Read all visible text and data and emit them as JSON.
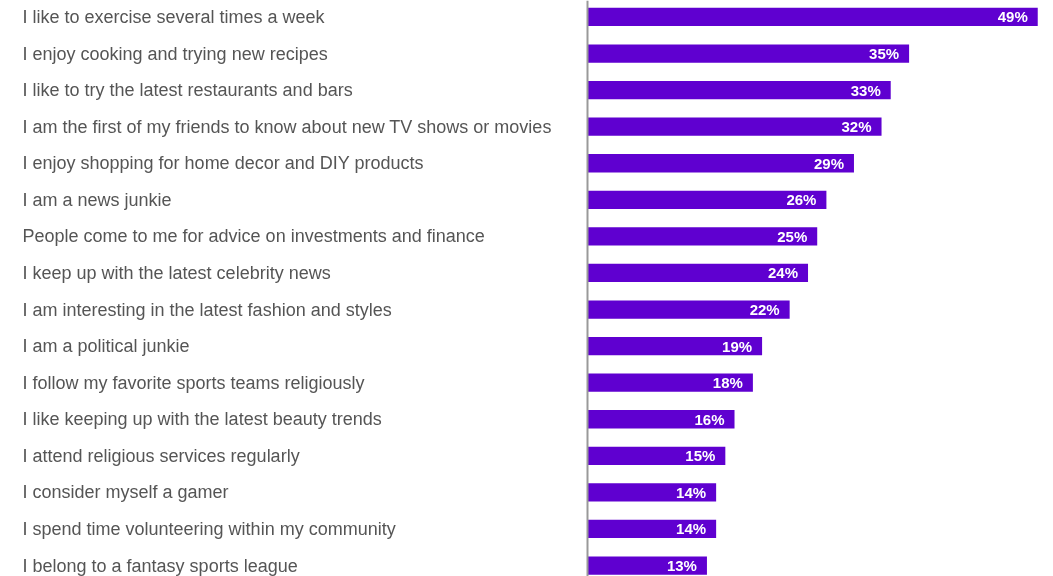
{
  "chart_data": {
    "type": "bar",
    "orientation": "horizontal",
    "color": "#5f00d0",
    "categories": [
      "I like to exercise several times a week",
      "I enjoy cooking and trying new recipes",
      "I like to try the latest restaurants and bars",
      "I am the first of my friends to know about new TV shows or movies",
      "I enjoy shopping for home decor and DIY products",
      "I am a news junkie",
      "People come to me for advice on investments and finance",
      "I keep up with the latest celebrity news",
      "I am interesting in the latest fashion and styles",
      "I am a political junkie",
      "I follow my favorite sports teams religiously",
      "I like keeping up with the latest beauty trends",
      "I attend religious services regularly",
      "I consider myself a gamer",
      "I spend time volunteering within my community",
      "I belong to a fantasy sports league"
    ],
    "values": [
      49,
      35,
      33,
      32,
      29,
      26,
      25,
      24,
      22,
      19,
      18,
      16,
      15,
      14,
      14,
      13
    ],
    "value_labels": [
      "49%",
      "35%",
      "33%",
      "32%",
      "29%",
      "26%",
      "25%",
      "24%",
      "22%",
      "19%",
      "18%",
      "16%",
      "15%",
      "14%",
      "14%",
      "13%"
    ],
    "data_labels": false
  }
}
